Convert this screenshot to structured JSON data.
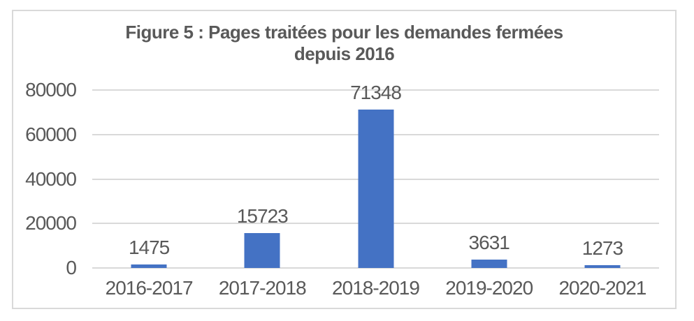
{
  "chart_data": {
    "type": "bar",
    "title_line1": "Figure 5 : Pages traitées pour les demandes fermées",
    "title_line2": "depuis 2016",
    "categories": [
      "2016-2017",
      "2017-2018",
      "2018-2019",
      "2019-2020",
      "2020-2021"
    ],
    "values": [
      1475,
      15723,
      71348,
      3631,
      1273
    ],
    "data_labels": [
      "1475",
      "15723",
      "71348",
      "3631",
      "1273"
    ],
    "yticks": [
      0,
      20000,
      40000,
      60000,
      80000
    ],
    "ylim": [
      0,
      80000
    ],
    "grid": true,
    "legend": "none",
    "bar_color": "#4472C4",
    "grid_color": "#D9D9D9",
    "text_color": "#595959",
    "title_color": "#595959",
    "border_color": "#D9D9D9"
  }
}
